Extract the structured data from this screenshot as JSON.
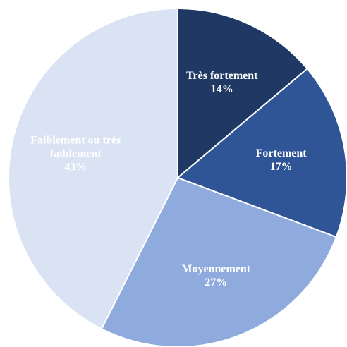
{
  "chart_data": {
    "type": "pie",
    "categories": [
      "Très fortement",
      "Fortement",
      "Moyennement",
      "Faiblement ou très faiblement"
    ],
    "values": [
      14,
      17,
      27,
      43
    ],
    "value_labels": [
      "14%",
      "17%",
      "27%",
      "43%"
    ],
    "colors": [
      "#1f3864",
      "#2f5597",
      "#8faadc",
      "#dae3f3"
    ]
  }
}
